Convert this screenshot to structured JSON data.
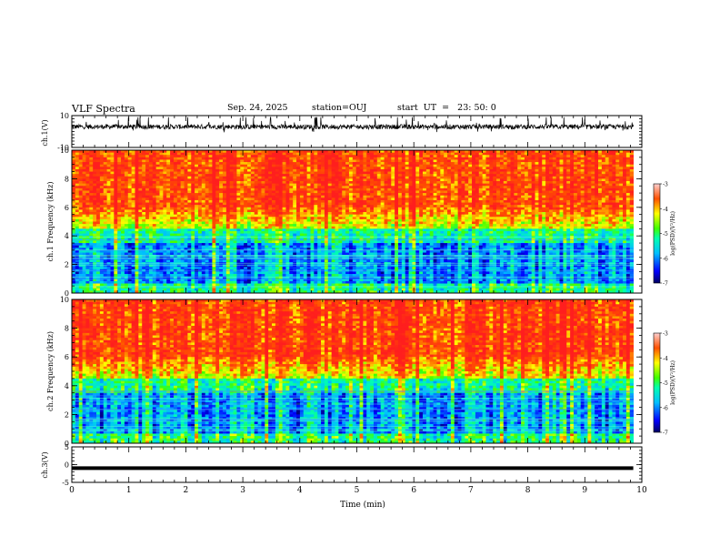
{
  "header": {
    "title": "VLF Spectra",
    "date": "Sep. 24, 2025",
    "station": "station=OUJ",
    "start": "start  UT  =   23: 50: 0"
  },
  "chart_data": [
    {
      "type": "line",
      "panel": "ch1-waveform",
      "ylabel": "ch.1(V)",
      "ylim": [
        -10,
        10
      ],
      "yticks": [
        "10",
        "-10"
      ],
      "series": [
        {
          "note": "dense noisy trace centered near +3 V, range about -1 to 8"
        }
      ]
    },
    {
      "type": "heatmap",
      "panel": "ch1-spectrogram",
      "ylabel": "ch.1 Frequency (kHz)",
      "ylim": [
        0,
        10
      ],
      "yticks": [
        "0",
        "2",
        "4",
        "6",
        "8",
        "10"
      ],
      "xlim": [
        0,
        10
      ],
      "colorbar": {
        "label": "log(PSD)(V²/Hz)",
        "range": [
          -7,
          -3
        ],
        "ticks": [
          "-3",
          "-4",
          "-5",
          "-6",
          "-7"
        ]
      }
    },
    {
      "type": "heatmap",
      "panel": "ch2-spectrogram",
      "ylabel": "ch.2 Frequency (kHz)",
      "ylim": [
        0,
        10
      ],
      "yticks": [
        "0",
        "2",
        "4",
        "6",
        "8",
        "10"
      ],
      "xlim": [
        0,
        10
      ],
      "colorbar": {
        "label": "log(PSD)(V²/Hz)",
        "range": [
          -7,
          -3
        ],
        "ticks": [
          "-3",
          "-4",
          "-5",
          "-6",
          "-7"
        ]
      }
    },
    {
      "type": "line",
      "panel": "ch3-waveform",
      "ylabel": "ch.3(V)",
      "ylim": [
        -5,
        5
      ],
      "yticks": [
        "5",
        "0",
        "-5"
      ],
      "series": [
        {
          "note": "flat trace near -1 V"
        }
      ],
      "xlabel": "Time  (min)",
      "xticks": [
        "0",
        "1",
        "2",
        "3",
        "4",
        "5",
        "6",
        "7",
        "8",
        "9",
        "10"
      ],
      "xlim": [
        0,
        10
      ]
    }
  ]
}
